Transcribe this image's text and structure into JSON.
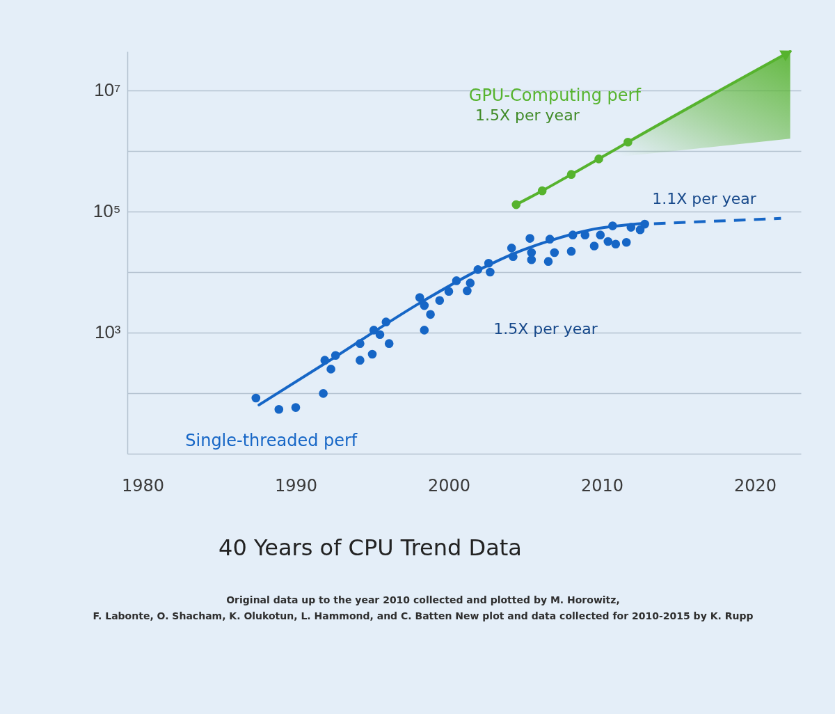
{
  "chart_data": {
    "type": "scatter",
    "title": "40 Years of CPU Trend Data",
    "annotations": [
      "1.5X per year",
      "1.1X per year",
      "1.5X per year",
      "Original data up to the year 2010 collected and plotted by M. Horowitz,\nF. Labonte, O. Shacham, K. Olukotun, L. Hammond, and C. Batten New plot and data collected for 2010-2015 by K. Rupp"
    ],
    "series": [
      {
        "name": "Single-threaded perf",
        "marker": "circle",
        "color": "#1666c6",
        "x": [
          1987.4,
          1988.9,
          1990.0,
          1991.8,
          1991.9,
          1992.3,
          1992.6,
          1994.2,
          1994.2,
          1995.0,
          1995.1,
          1995.5,
          1996.1,
          1995.9,
          1998.1,
          1998.4,
          1998.8,
          1998.4,
          1999.4,
          2000.0,
          2000.5,
          2001.2,
          2001.4,
          2001.9,
          2002.6,
          2002.7,
          2004.1,
          2004.2,
          2005.3,
          2005.4,
          2005.4,
          2006.5,
          2006.6,
          2006.9,
          2008.1,
          2008.0,
          2008.9,
          2009.5,
          2009.9,
          2010.4,
          2010.7,
          2010.9,
          2011.6,
          2011.9,
          2012.5,
          2012.8
        ],
        "values": [
          83,
          54,
          58,
          99,
          350,
          250,
          420,
          660,
          350,
          440,
          1100,
          930,
          660,
          1500,
          3800,
          2800,
          2000,
          1100,
          3400,
          4800,
          7200,
          4900,
          6600,
          11000,
          14000,
          10000,
          25000,
          18000,
          36000,
          21000,
          16000,
          15000,
          35000,
          21000,
          41000,
          22000,
          41000,
          27000,
          41000,
          32000,
          58000,
          29000,
          31000,
          55000,
          50000,
          62000
        ]
      },
      {
        "type": "line",
        "marker": "none",
        "color": "#1666c6",
        "x": [
          1987.6,
          1992.0,
          1998.3,
          2002.0,
          2004.2,
          2006.6,
          2009.1,
          2012.9
        ],
        "values": [
          64,
          320,
          3300,
          11000,
          20000,
          33000,
          49000,
          64000
        ]
      },
      {
        "type": "line",
        "marker": "none",
        "line_style": "dashed",
        "color": "#1666c6",
        "x": [
          2013.4,
          2021.7
        ],
        "values": [
          63000,
          77000
        ]
      },
      {
        "name": "GPU-Computing perf",
        "type": "line",
        "marker": "none",
        "color": "#56b32e",
        "x": [
          2004.4,
          2006.1,
          2008.0,
          2009.8,
          2011.7,
          2022.3
        ],
        "values": [
          130000,
          220000,
          410000,
          740000,
          1400000,
          44000000
        ],
        "lower": [
          null,
          null,
          null,
          740000,
          830000,
          1600000
        ],
        "upper": [
          null,
          null,
          null,
          740000,
          1400000,
          44000000
        ]
      },
      {
        "marker": "circle",
        "color": "#56b32e",
        "x": [
          2004.4,
          2006.1,
          2008.0,
          2009.8,
          2011.7
        ],
        "values": [
          130000,
          220000,
          410000,
          740000,
          1400000
        ]
      }
    ],
    "xlim": [
      1979,
      2023
    ],
    "xticks": [
      1980,
      1990,
      2000,
      2010,
      2020
    ],
    "ylim": [
      10,
      44000000
    ],
    "yticks": [
      {
        "value": 10,
        "label": null
      },
      {
        "value": 100,
        "label": null
      },
      {
        "value": 1000,
        "label": "10³"
      },
      {
        "value": 10000,
        "label": null
      },
      {
        "value": 100000,
        "label": "10⁵"
      },
      {
        "value": 1000000,
        "label": null
      },
      {
        "value": 10000000,
        "label": "10⁷"
      }
    ],
    "log": true,
    "grid": "y"
  }
}
